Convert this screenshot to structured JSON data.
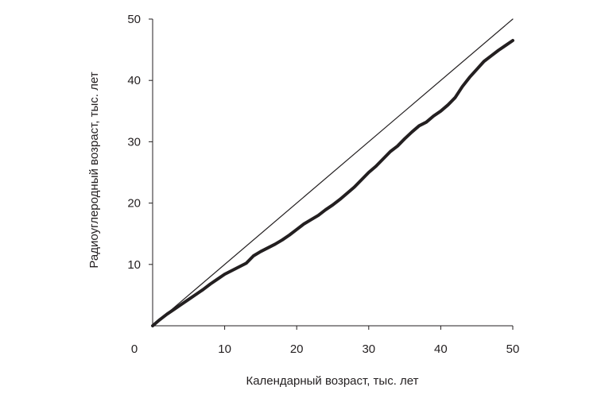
{
  "chart_data": {
    "type": "line",
    "title": "",
    "xlabel": "Календарный возраст, тыс. лет",
    "ylabel": "Радиоуглеродный возраст, тыс. лет",
    "xlim": [
      0,
      50
    ],
    "ylim": [
      0,
      50
    ],
    "x_ticks": [
      0,
      10,
      20,
      30,
      40,
      50
    ],
    "y_ticks": [
      10,
      20,
      30,
      40,
      50
    ],
    "x_tick_labels": [
      "0",
      "10",
      "20",
      "30",
      "40",
      "50"
    ],
    "y_tick_labels": [
      "10",
      "20",
      "30",
      "40",
      "50"
    ],
    "grid": false,
    "legend": "none",
    "series": [
      {
        "style": "thin",
        "x": [
          0,
          50
        ],
        "y": [
          0,
          50
        ]
      },
      {
        "style": "thick",
        "x": [
          0,
          1,
          2,
          3,
          4,
          5,
          6,
          7,
          8,
          9,
          10,
          11,
          12,
          13,
          14,
          15,
          16,
          17,
          18,
          19,
          20,
          21,
          22,
          23,
          24,
          25,
          26,
          27,
          28,
          29,
          30,
          31,
          32,
          33,
          34,
          35,
          36,
          37,
          38,
          39,
          40,
          41,
          42,
          43,
          44,
          45,
          46,
          47,
          48,
          49,
          50
        ],
        "y": [
          0,
          1.0,
          1.9,
          2.7,
          3.5,
          4.3,
          5.1,
          5.9,
          6.8,
          7.6,
          8.4,
          9.0,
          9.6,
          10.2,
          11.4,
          12.1,
          12.7,
          13.3,
          14.0,
          14.8,
          15.7,
          16.6,
          17.3,
          18.0,
          18.9,
          19.7,
          20.6,
          21.6,
          22.6,
          23.8,
          25.0,
          26.0,
          27.2,
          28.4,
          29.3,
          30.5,
          31.6,
          32.6,
          33.2,
          34.2,
          35.0,
          36.0,
          37.2,
          39.0,
          40.5,
          41.8,
          43.1,
          44.0,
          44.9,
          45.7,
          46.5
        ]
      }
    ]
  }
}
